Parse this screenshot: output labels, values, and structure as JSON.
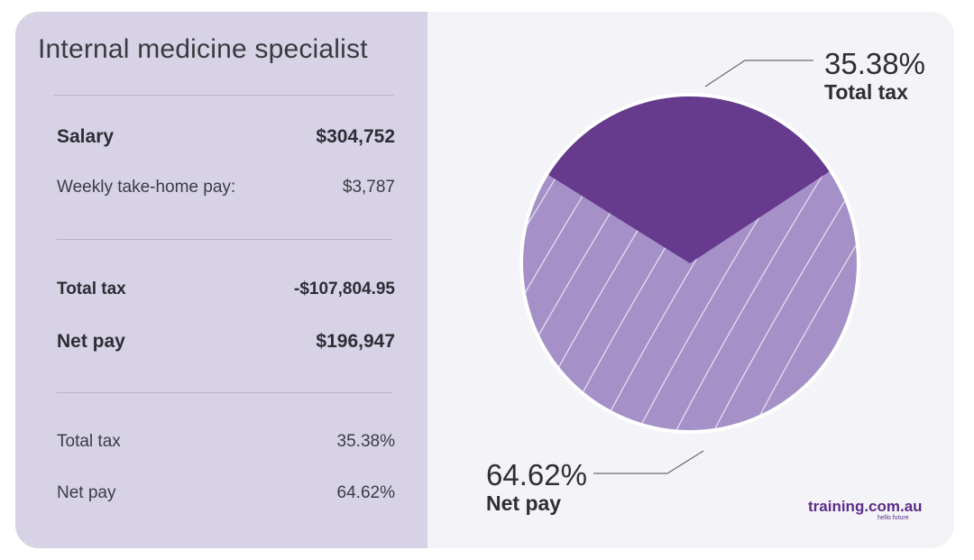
{
  "card": {
    "title": "Internal medicine specialist",
    "rows": [
      {
        "label": "Salary",
        "value": "$304,752"
      },
      {
        "label": "Weekly take-home pay:",
        "value": "$3,787"
      },
      {
        "label": "Total tax",
        "value": "-$107,804.95"
      },
      {
        "label": "Net pay",
        "value": "$196,947"
      },
      {
        "label": "Total tax",
        "value": "35.38%"
      },
      {
        "label": "Net pay",
        "value": "64.62%"
      }
    ]
  },
  "chart_data": {
    "type": "pie",
    "slices": [
      {
        "label": "Total tax",
        "value": 35.38,
        "display": "35.38%",
        "color": "#663a8c"
      },
      {
        "label": "Net pay",
        "value": 64.62,
        "display": "64.62%",
        "color": "#a591c8"
      }
    ]
  },
  "brand": {
    "name": "training.com.au",
    "tagline": "hello future"
  },
  "colors": {
    "left_panel_bg": "#d7d2e6",
    "right_panel_bg": "#f4f3f7",
    "tax_slice": "#663a8c",
    "net_slice": "#a591c8",
    "brand": "#5a2d8a"
  }
}
